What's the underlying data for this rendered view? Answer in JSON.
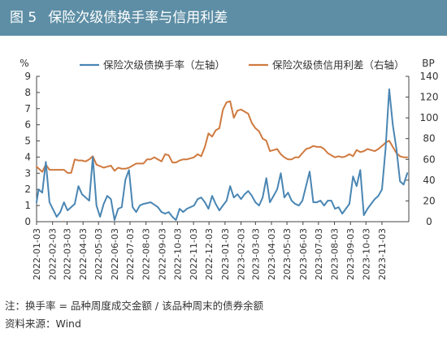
{
  "header": {
    "figure_no": "图 5",
    "title": "保险次级债换手率与信用利差"
  },
  "footer": {
    "note": "注：换手率 = 品种周度成交金额 / 该品种周末的债券余额",
    "source": "资料来源：Wind"
  },
  "colors": {
    "title_bg": "#5d8ea5",
    "turnover": "#4a86b3",
    "spread": "#cf7a3f"
  },
  "chart_data": {
    "type": "line",
    "left_axis": {
      "unit": "%",
      "range": [
        0,
        9
      ],
      "ticks": [
        "0",
        "1",
        "2",
        "3",
        "4",
        "5",
        "6",
        "7",
        "8",
        "9"
      ]
    },
    "right_axis": {
      "unit": "BP",
      "range": [
        0,
        140
      ],
      "ticks": [
        "0",
        "20",
        "40",
        "60",
        "80",
        "100",
        "120",
        "140"
      ]
    },
    "x_range": [
      "2022-01-03",
      "2023-12-25"
    ],
    "x_ticks": [
      "2022-01-03",
      "2022-02-03",
      "2022-03-03",
      "2022-04-03",
      "2022-05-03",
      "2022-06-03",
      "2022-07-03",
      "2022-08-03",
      "2022-09-03",
      "2022-10-03",
      "2022-11-03",
      "2022-12-03",
      "2023-01-03",
      "2023-02-03",
      "2023-03-03",
      "2023-04-03",
      "2023-05-03",
      "2023-06-03",
      "2023-07-03",
      "2023-08-03",
      "2023-09-03",
      "2023-10-03",
      "2023-11-03"
    ],
    "legend_position": "top",
    "grid": false,
    "series": [
      {
        "name": "保险次级债换手率（左轴）",
        "axis": "left",
        "color": "#4a86b3",
        "points": [
          [
            "2022-01-03",
            1.2
          ],
          [
            "2022-01-07",
            2.0
          ],
          [
            "2022-01-14",
            1.8
          ],
          [
            "2022-01-21",
            3.7
          ],
          [
            "2022-01-28",
            1.2
          ],
          [
            "2022-02-11",
            0.3
          ],
          [
            "2022-02-18",
            0.6
          ],
          [
            "2022-02-25",
            1.2
          ],
          [
            "2022-03-04",
            0.7
          ],
          [
            "2022-03-18",
            1.1
          ],
          [
            "2022-03-25",
            2.2
          ],
          [
            "2022-04-01",
            1.7
          ],
          [
            "2022-04-15",
            1.3
          ],
          [
            "2022-04-22",
            4.0
          ],
          [
            "2022-04-29",
            1.0
          ],
          [
            "2022-05-06",
            0.3
          ],
          [
            "2022-05-13",
            1.1
          ],
          [
            "2022-05-20",
            1.6
          ],
          [
            "2022-05-27",
            1.4
          ],
          [
            "2022-06-03",
            0.1
          ],
          [
            "2022-06-10",
            0.8
          ],
          [
            "2022-06-17",
            0.9
          ],
          [
            "2022-06-24",
            2.6
          ],
          [
            "2022-07-01",
            3.2
          ],
          [
            "2022-07-08",
            0.9
          ],
          [
            "2022-07-15",
            0.6
          ],
          [
            "2022-07-22",
            1.0
          ],
          [
            "2022-07-29",
            1.1
          ],
          [
            "2022-08-12",
            1.2
          ],
          [
            "2022-08-26",
            0.9
          ],
          [
            "2022-09-02",
            0.6
          ],
          [
            "2022-09-09",
            0.5
          ],
          [
            "2022-09-16",
            0.6
          ],
          [
            "2022-09-23",
            0.3
          ],
          [
            "2022-09-30",
            0.1
          ],
          [
            "2022-10-07",
            0.8
          ],
          [
            "2022-10-14",
            0.6
          ],
          [
            "2022-10-21",
            0.8
          ],
          [
            "2022-11-04",
            1.0
          ],
          [
            "2022-11-11",
            1.4
          ],
          [
            "2022-11-18",
            1.5
          ],
          [
            "2022-11-25",
            1.2
          ],
          [
            "2022-12-02",
            0.8
          ],
          [
            "2022-12-09",
            1.6
          ],
          [
            "2022-12-16",
            1.1
          ],
          [
            "2022-12-23",
            0.7
          ],
          [
            "2022-12-30",
            1.0
          ],
          [
            "2023-01-06",
            1.3
          ],
          [
            "2023-01-13",
            2.2
          ],
          [
            "2023-01-20",
            1.5
          ],
          [
            "2023-01-27",
            1.7
          ],
          [
            "2023-02-03",
            1.4
          ],
          [
            "2023-02-10",
            1.7
          ],
          [
            "2023-02-17",
            1.9
          ],
          [
            "2023-02-24",
            1.6
          ],
          [
            "2023-03-03",
            1.2
          ],
          [
            "2023-03-10",
            1.0
          ],
          [
            "2023-03-17",
            1.5
          ],
          [
            "2023-03-24",
            2.7
          ],
          [
            "2023-03-31",
            1.2
          ],
          [
            "2023-04-07",
            1.6
          ],
          [
            "2023-04-14",
            2.0
          ],
          [
            "2023-04-21",
            3.0
          ],
          [
            "2023-04-28",
            1.5
          ],
          [
            "2023-05-05",
            1.8
          ],
          [
            "2023-05-12",
            1.3
          ],
          [
            "2023-05-19",
            1.1
          ],
          [
            "2023-05-26",
            1.0
          ],
          [
            "2023-06-02",
            1.3
          ],
          [
            "2023-06-16",
            3.1
          ],
          [
            "2023-06-23",
            1.2
          ],
          [
            "2023-06-30",
            1.2
          ],
          [
            "2023-07-07",
            1.3
          ],
          [
            "2023-07-14",
            1.0
          ],
          [
            "2023-07-21",
            1.3
          ],
          [
            "2023-07-28",
            1.3
          ],
          [
            "2023-08-04",
            0.8
          ],
          [
            "2023-08-11",
            0.9
          ],
          [
            "2023-08-18",
            0.5
          ],
          [
            "2023-08-25",
            0.8
          ],
          [
            "2023-09-01",
            1.1
          ],
          [
            "2023-09-08",
            2.8
          ],
          [
            "2023-09-15",
            2.2
          ],
          [
            "2023-09-22",
            3.2
          ],
          [
            "2023-09-29",
            0.4
          ],
          [
            "2023-10-06",
            0.8
          ],
          [
            "2023-10-13",
            1.1
          ],
          [
            "2023-10-20",
            1.4
          ],
          [
            "2023-10-27",
            1.6
          ],
          [
            "2023-11-03",
            2.0
          ],
          [
            "2023-11-10",
            4.5
          ],
          [
            "2023-11-17",
            8.2
          ],
          [
            "2023-11-24",
            6.0
          ],
          [
            "2023-12-01",
            4.5
          ],
          [
            "2023-12-08",
            2.5
          ],
          [
            "2023-12-15",
            2.3
          ],
          [
            "2023-12-22",
            3.0
          ]
        ]
      },
      {
        "name": "保险次级债信用利差（右轴）",
        "axis": "right",
        "color": "#cf7a3f",
        "points": [
          [
            "2022-01-03",
            53
          ],
          [
            "2022-01-14",
            48
          ],
          [
            "2022-01-21",
            55
          ],
          [
            "2022-01-28",
            50
          ],
          [
            "2022-02-11",
            50
          ],
          [
            "2022-02-25",
            50
          ],
          [
            "2022-03-04",
            47
          ],
          [
            "2022-03-11",
            47
          ],
          [
            "2022-03-18",
            60
          ],
          [
            "2022-03-25",
            59
          ],
          [
            "2022-04-01",
            59
          ],
          [
            "2022-04-08",
            58
          ],
          [
            "2022-04-15",
            60
          ],
          [
            "2022-04-22",
            63
          ],
          [
            "2022-04-29",
            55
          ],
          [
            "2022-05-13",
            52
          ],
          [
            "2022-05-20",
            53
          ],
          [
            "2022-05-27",
            54
          ],
          [
            "2022-06-03",
            49
          ],
          [
            "2022-06-10",
            52
          ],
          [
            "2022-06-17",
            51
          ],
          [
            "2022-06-24",
            51
          ],
          [
            "2022-07-01",
            52
          ],
          [
            "2022-07-15",
            56
          ],
          [
            "2022-07-29",
            56
          ],
          [
            "2022-08-05",
            60
          ],
          [
            "2022-08-12",
            60
          ],
          [
            "2022-08-19",
            62
          ],
          [
            "2022-08-26",
            60
          ],
          [
            "2022-09-02",
            58
          ],
          [
            "2022-09-09",
            65
          ],
          [
            "2022-09-16",
            64
          ],
          [
            "2022-09-23",
            57
          ],
          [
            "2022-09-30",
            57
          ],
          [
            "2022-10-07",
            59
          ],
          [
            "2022-10-14",
            60
          ],
          [
            "2022-10-21",
            60
          ],
          [
            "2022-11-04",
            62
          ],
          [
            "2022-11-11",
            65
          ],
          [
            "2022-11-18",
            63
          ],
          [
            "2022-11-25",
            72
          ],
          [
            "2022-12-02",
            85
          ],
          [
            "2022-12-09",
            82
          ],
          [
            "2022-12-16",
            88
          ],
          [
            "2022-12-23",
            90
          ],
          [
            "2022-12-30",
            108
          ],
          [
            "2023-01-06",
            115
          ],
          [
            "2023-01-13",
            116
          ],
          [
            "2023-01-20",
            100
          ],
          [
            "2023-01-27",
            107
          ],
          [
            "2023-02-03",
            108
          ],
          [
            "2023-02-10",
            106
          ],
          [
            "2023-02-17",
            104
          ],
          [
            "2023-02-24",
            95
          ],
          [
            "2023-03-03",
            90
          ],
          [
            "2023-03-10",
            87
          ],
          [
            "2023-03-17",
            80
          ],
          [
            "2023-03-24",
            78
          ],
          [
            "2023-03-31",
            68
          ],
          [
            "2023-04-07",
            69
          ],
          [
            "2023-04-14",
            70
          ],
          [
            "2023-04-21",
            65
          ],
          [
            "2023-04-28",
            62
          ],
          [
            "2023-05-05",
            60
          ],
          [
            "2023-05-12",
            60
          ],
          [
            "2023-05-19",
            62
          ],
          [
            "2023-05-26",
            62
          ],
          [
            "2023-06-02",
            66
          ],
          [
            "2023-06-09",
            70
          ],
          [
            "2023-06-16",
            71
          ],
          [
            "2023-06-23",
            73
          ],
          [
            "2023-06-30",
            72
          ],
          [
            "2023-07-07",
            72
          ],
          [
            "2023-07-14",
            70
          ],
          [
            "2023-07-21",
            66
          ],
          [
            "2023-07-28",
            64
          ],
          [
            "2023-08-04",
            62
          ],
          [
            "2023-08-11",
            63
          ],
          [
            "2023-08-18",
            62
          ],
          [
            "2023-08-25",
            63
          ],
          [
            "2023-09-01",
            65
          ],
          [
            "2023-09-08",
            63
          ],
          [
            "2023-09-15",
            69
          ],
          [
            "2023-09-22",
            67
          ],
          [
            "2023-09-29",
            68
          ],
          [
            "2023-10-06",
            70
          ],
          [
            "2023-10-13",
            69
          ],
          [
            "2023-10-20",
            68
          ],
          [
            "2023-10-27",
            70
          ],
          [
            "2023-11-03",
            73
          ],
          [
            "2023-11-10",
            76
          ],
          [
            "2023-11-17",
            78
          ],
          [
            "2023-11-24",
            72
          ],
          [
            "2023-12-01",
            66
          ],
          [
            "2023-12-08",
            63
          ],
          [
            "2023-12-15",
            62
          ],
          [
            "2023-12-22",
            62
          ]
        ]
      }
    ]
  }
}
